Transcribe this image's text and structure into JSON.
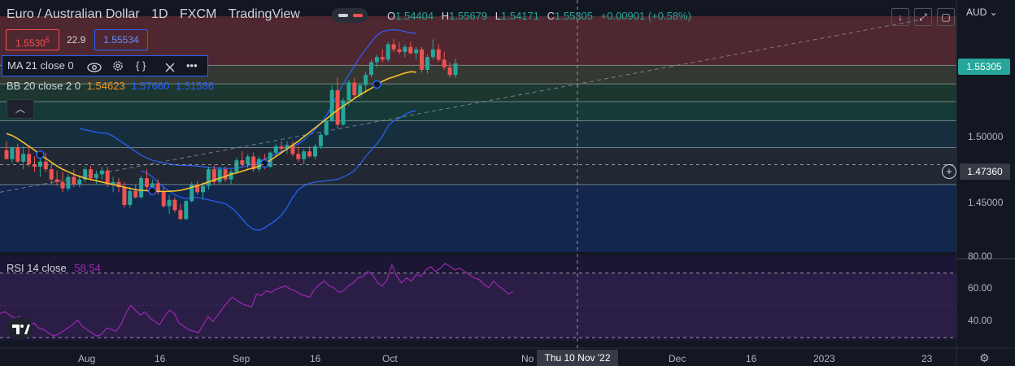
{
  "header": {
    "symbol": "Euro / Australian Dollar",
    "interval": "1D",
    "source": "FXCM",
    "platform": "TradingView",
    "ohlc": {
      "o_label": "O",
      "o": "1.54404",
      "h_label": "H",
      "h": "1.55679",
      "l_label": "L",
      "l": "1.54171",
      "c_label": "C",
      "c": "1.55305",
      "change": "+0.00901 (+0.58%)"
    }
  },
  "trade": {
    "bid_main": "1.5530",
    "bid_sup": "5",
    "spread": "22.9",
    "ask": "1.55534"
  },
  "indicators": {
    "ma": {
      "label": "MA 21 close 0"
    },
    "bb": {
      "label": "BB 20 close 2 0",
      "basis": "1.54623",
      "upper": "1.57660",
      "lower": "1.51586"
    },
    "rsi": {
      "label": "RSI 14 close",
      "value": "58.54"
    }
  },
  "axis": {
    "currency": "AUD",
    "price_ticks": [
      "1.50000",
      "1.45000"
    ],
    "current_price": "1.55305",
    "crosshair_price": "1.47360",
    "rsi_ticks": [
      "80.00",
      "60.00",
      "40.00"
    ],
    "x_labels": [
      "Aug",
      "16",
      "Sep",
      "16",
      "Oct",
      "No",
      "Dec",
      "16",
      "2023",
      "23"
    ],
    "crosshair_date": "Thu 10 Nov '22"
  },
  "colors": {
    "up": "#26a69a",
    "down": "#ef5350",
    "ma": "#f9c02a",
    "bb": "#2962ff",
    "rsi": "#9c27b0",
    "background": "#131722"
  },
  "icons": [
    "eye-icon",
    "gear-icon",
    "source-code-icon",
    "close-icon",
    "more-icon",
    "chevron-up-icon",
    "arrow-down-icon",
    "fullscreen-icon",
    "tradingview-logo",
    "settings-gear-icon",
    "plus-icon"
  ],
  "chart_data": {
    "type": "candlestick",
    "title": "Euro / Australian Dollar 1D FXCM",
    "ylabel": "AUD",
    "ylim": [
      1.405,
      1.59
    ],
    "rsi_ylim": [
      25,
      84
    ],
    "bands": [
      {
        "from": 1.5515,
        "to": 1.59,
        "color": "#5b2a32"
      },
      {
        "from": 1.537,
        "to": 1.5515,
        "color": "#3a3f35"
      },
      {
        "from": 1.523,
        "to": 1.537,
        "color": "#1f3d33"
      },
      {
        "from": 1.508,
        "to": 1.523,
        "color": "#16413c"
      },
      {
        "from": 1.487,
        "to": 1.508,
        "color": "#173444"
      },
      {
        "from": 1.458,
        "to": 1.487,
        "color": "#262b36"
      },
      {
        "from": 1.405,
        "to": 1.458,
        "color": "#142a55"
      }
    ],
    "fib_levels": [
      1.5515,
      1.537,
      1.523,
      1.508,
      1.487,
      1.458
    ],
    "candles": [
      [
        1.485,
        1.492,
        1.479,
        1.478
      ],
      [
        1.478,
        1.488,
        1.475,
        1.487
      ],
      [
        1.487,
        1.49,
        1.475,
        1.476
      ],
      [
        1.476,
        1.488,
        1.47,
        1.482
      ],
      [
        1.482,
        1.488,
        1.472,
        1.474
      ],
      [
        1.474,
        1.48,
        1.468,
        1.472
      ],
      [
        1.472,
        1.478,
        1.464,
        1.476
      ],
      [
        1.476,
        1.483,
        1.468,
        1.47
      ],
      [
        1.47,
        1.476,
        1.458,
        1.462
      ],
      [
        1.462,
        1.469,
        1.457,
        1.46
      ],
      [
        1.46,
        1.468,
        1.452,
        1.455
      ],
      [
        1.455,
        1.466,
        1.453,
        1.464
      ],
      [
        1.464,
        1.47,
        1.456,
        1.458
      ],
      [
        1.458,
        1.465,
        1.456,
        1.462
      ],
      [
        1.462,
        1.472,
        1.46,
        1.47
      ],
      [
        1.47,
        1.473,
        1.461,
        1.463
      ],
      [
        1.463,
        1.469,
        1.458,
        1.466
      ],
      [
        1.466,
        1.472,
        1.462,
        1.469
      ],
      [
        1.469,
        1.472,
        1.456,
        1.458
      ],
      [
        1.458,
        1.464,
        1.452,
        1.46
      ],
      [
        1.46,
        1.463,
        1.452,
        1.456
      ],
      [
        1.456,
        1.46,
        1.44,
        1.442
      ],
      [
        1.442,
        1.456,
        1.44,
        1.453
      ],
      [
        1.453,
        1.458,
        1.447,
        1.448
      ],
      [
        1.448,
        1.465,
        1.447,
        1.463
      ],
      [
        1.463,
        1.47,
        1.454,
        1.456
      ],
      [
        1.456,
        1.462,
        1.45,
        1.459
      ],
      [
        1.459,
        1.462,
        1.45,
        1.452
      ],
      [
        1.452,
        1.456,
        1.44,
        1.441
      ],
      [
        1.441,
        1.45,
        1.435,
        1.446
      ],
      [
        1.446,
        1.448,
        1.436,
        1.438
      ],
      [
        1.438,
        1.443,
        1.43,
        1.431
      ],
      [
        1.431,
        1.446,
        1.43,
        1.445
      ],
      [
        1.445,
        1.46,
        1.444,
        1.458
      ],
      [
        1.458,
        1.461,
        1.45,
        1.452
      ],
      [
        1.452,
        1.46,
        1.446,
        1.457
      ],
      [
        1.457,
        1.472,
        1.454,
        1.47
      ],
      [
        1.47,
        1.473,
        1.458,
        1.46
      ],
      [
        1.46,
        1.472,
        1.458,
        1.47
      ],
      [
        1.47,
        1.472,
        1.46,
        1.462
      ],
      [
        1.462,
        1.47,
        1.458,
        1.468
      ],
      [
        1.468,
        1.479,
        1.466,
        1.477
      ],
      [
        1.477,
        1.484,
        1.472,
        1.474
      ],
      [
        1.474,
        1.482,
        1.47,
        1.48
      ],
      [
        1.48,
        1.483,
        1.468,
        1.47
      ],
      [
        1.47,
        1.48,
        1.468,
        1.478
      ],
      [
        1.478,
        1.482,
        1.47,
        1.472
      ],
      [
        1.472,
        1.484,
        1.471,
        1.483
      ],
      [
        1.483,
        1.49,
        1.48,
        1.488
      ],
      [
        1.488,
        1.492,
        1.482,
        1.486
      ],
      [
        1.486,
        1.492,
        1.482,
        1.489
      ],
      [
        1.489,
        1.492,
        1.48,
        1.482
      ],
      [
        1.482,
        1.488,
        1.476,
        1.478
      ],
      [
        1.478,
        1.486,
        1.474,
        1.484
      ],
      [
        1.484,
        1.488,
        1.479,
        1.48
      ],
      [
        1.48,
        1.49,
        1.478,
        1.488
      ],
      [
        1.488,
        1.499,
        1.486,
        1.497
      ],
      [
        1.497,
        1.51,
        1.496,
        1.508
      ],
      [
        1.508,
        1.536,
        1.507,
        1.532
      ],
      [
        1.532,
        1.542,
        1.502,
        1.505
      ],
      [
        1.505,
        1.526,
        1.504,
        1.524
      ],
      [
        1.524,
        1.54,
        1.52,
        1.538
      ],
      [
        1.538,
        1.542,
        1.526,
        1.528
      ],
      [
        1.528,
        1.538,
        1.526,
        1.536
      ],
      [
        1.536,
        1.546,
        1.53,
        1.544
      ],
      [
        1.544,
        1.556,
        1.542,
        1.554
      ],
      [
        1.554,
        1.56,
        1.55,
        1.558
      ],
      [
        1.558,
        1.564,
        1.554,
        1.556
      ],
      [
        1.556,
        1.57,
        1.554,
        1.568
      ],
      [
        1.568,
        1.572,
        1.562,
        1.564
      ],
      [
        1.564,
        1.57,
        1.56,
        1.562
      ],
      [
        1.562,
        1.568,
        1.558,
        1.566
      ],
      [
        1.566,
        1.57,
        1.56,
        1.561
      ],
      [
        1.561,
        1.566,
        1.556,
        1.564
      ],
      [
        1.564,
        1.566,
        1.546,
        1.548
      ],
      [
        1.548,
        1.56,
        1.545,
        1.558
      ],
      [
        1.558,
        1.572,
        1.556,
        1.564
      ],
      [
        1.564,
        1.568,
        1.554,
        1.556
      ],
      [
        1.556,
        1.562,
        1.548,
        1.55
      ],
      [
        1.55,
        1.554,
        1.542,
        1.544
      ],
      [
        1.544,
        1.5568,
        1.5417,
        1.5531
      ]
    ],
    "ma21": [
      1.498,
      1.4965,
      1.494,
      1.491,
      1.488,
      1.485,
      1.4815,
      1.4785,
      1.4755,
      1.4725,
      1.47,
      1.468,
      1.466,
      1.4645,
      1.463,
      1.462,
      1.461,
      1.46,
      1.459,
      1.458,
      1.457,
      1.456,
      1.455,
      1.454,
      1.4535,
      1.4532,
      1.453,
      1.4527,
      1.4525,
      1.4527,
      1.453,
      1.4535,
      1.4545,
      1.4558,
      1.457,
      1.4585,
      1.46,
      1.4615,
      1.463,
      1.4645,
      1.466,
      1.4672,
      1.4685,
      1.4698,
      1.471,
      1.4725,
      1.4745,
      1.477,
      1.48,
      1.483,
      1.486,
      1.489,
      1.492,
      1.4955,
      1.499,
      1.5025,
      1.506,
      1.5095,
      1.513,
      1.5165,
      1.5195,
      1.5225,
      1.5255,
      1.5285,
      1.531,
      1.5335,
      1.5365,
      1.539,
      1.541,
      1.5425,
      1.544,
      1.5455,
      1.5465,
      1.5462
    ],
    "bb_upper": [
      1.502,
      1.501,
      1.5,
      1.499,
      1.4985,
      1.498,
      1.496,
      1.493,
      1.49,
      1.487,
      1.484,
      1.481,
      1.479,
      1.477,
      1.476,
      1.475,
      1.474,
      1.4735,
      1.473,
      1.473,
      1.4728,
      1.4725,
      1.472,
      1.4715,
      1.471,
      1.4708,
      1.4706,
      1.4705,
      1.471,
      1.4718,
      1.473,
      1.4745,
      1.476,
      1.478,
      1.48,
      1.482,
      1.484,
      1.486,
      1.488,
      1.49,
      1.493,
      1.497,
      1.501,
      1.506,
      1.512,
      1.52,
      1.529,
      1.537,
      1.544,
      1.551,
      1.558,
      1.564,
      1.57,
      1.575,
      1.578,
      1.579,
      1.5795,
      1.579,
      1.578,
      1.577,
      1.5766
    ],
    "bb_upper_offset": 13,
    "bb_lower": [
      1.469,
      1.467,
      1.464,
      1.46,
      1.456,
      1.453,
      1.45,
      1.448,
      1.447,
      1.4475,
      1.448,
      1.447,
      1.446,
      1.445,
      1.444,
      1.443,
      1.44,
      1.436,
      1.431,
      1.426,
      1.423,
      1.422,
      1.424,
      1.427,
      1.43,
      1.434,
      1.44,
      1.448,
      1.454,
      1.457,
      1.459,
      1.46,
      1.4605,
      1.461,
      1.4615,
      1.462,
      1.464,
      1.466,
      1.469,
      1.474,
      1.48,
      1.485,
      1.49,
      1.496,
      1.504,
      1.508,
      1.51,
      1.513,
      1.515,
      1.5158
    ],
    "bb_lower_offset": 24,
    "bb_basis_from": 24,
    "rsi": [
      45,
      46,
      44,
      42,
      43,
      40,
      38,
      39,
      36,
      35,
      33,
      31,
      32,
      34,
      36,
      38,
      41,
      37,
      35,
      33,
      31,
      32,
      36,
      35,
      34,
      38,
      45,
      50,
      47,
      44,
      46,
      42,
      40,
      38,
      43,
      47,
      45,
      39,
      37,
      35,
      34,
      33,
      38,
      43,
      40,
      44,
      48,
      52,
      55,
      53,
      51,
      50,
      49,
      57,
      56,
      59,
      58,
      60,
      61,
      62,
      60,
      59,
      57,
      56,
      55,
      60,
      63,
      65,
      62,
      61,
      58,
      59,
      62,
      64,
      67,
      68,
      71,
      69,
      64,
      62,
      66,
      75,
      68,
      64,
      67,
      65,
      69,
      68,
      72,
      74,
      71,
      73,
      76,
      74,
      72,
      73,
      71,
      69,
      67,
      66,
      63,
      61,
      65,
      62,
      60,
      57,
      58.54
    ]
  }
}
